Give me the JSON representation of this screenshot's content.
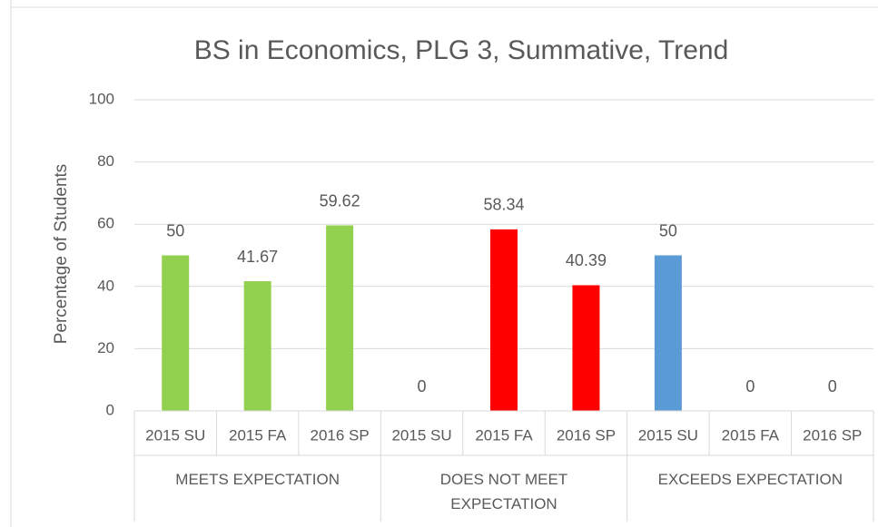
{
  "chart_data": {
    "type": "bar",
    "title": "BS in Economics, PLG 3, Summative, Trend",
    "y_label": "Percentage of Students",
    "groups": [
      {
        "name": "MEETS EXPECTATION",
        "color": "#92d050",
        "categories": [
          "2015 SU",
          "2015 FA",
          "2016 SP"
        ],
        "values": [
          50,
          41.67,
          59.62
        ]
      },
      {
        "name": "DOES NOT MEET EXPECTATION",
        "color": "#ff0000",
        "categories": [
          "2015 SU",
          "2015 FA",
          "2016 SP"
        ],
        "values": [
          0,
          58.34,
          40.39
        ]
      },
      {
        "name": "EXCEEDS EXPECTATION",
        "color": "#5b9bd5",
        "categories": [
          "2015 SU",
          "2015 FA",
          "2016 SP"
        ],
        "values": [
          50,
          0,
          0
        ]
      }
    ],
    "ylim": [
      0,
      100
    ],
    "yticks": [
      0,
      20,
      40,
      60,
      80,
      100
    ],
    "grid": true
  }
}
